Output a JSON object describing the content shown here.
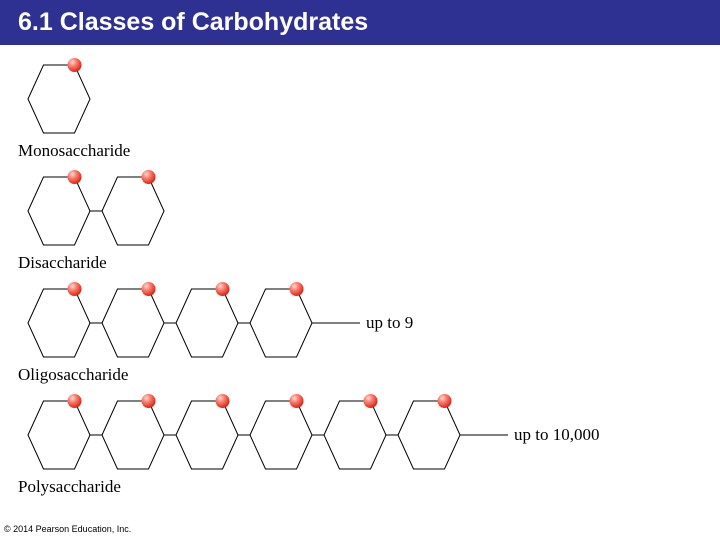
{
  "header": {
    "title": "6.1 Classes of Carbohydrates",
    "bg_color": "#2e3192",
    "text_color": "#ffffff",
    "fontsize": 25
  },
  "hexagon": {
    "width": 62,
    "height": 68,
    "stroke": "#000000",
    "stroke_width": 1,
    "fill": "none"
  },
  "ball": {
    "r": 7,
    "fill_light": "#ffcccc",
    "fill_core": "#e63b2e",
    "grad_id": "ballGrad"
  },
  "rows": [
    {
      "name": "Monosaccharide",
      "count": 1,
      "extra_text": null
    },
    {
      "name": "Disaccharide",
      "count": 2,
      "extra_text": null
    },
    {
      "name": "Oligosaccharide",
      "count": 4,
      "extra_text": "up to 9"
    },
    {
      "name": "Polysaccharide",
      "count": 6,
      "extra_text": "up to 10,000"
    }
  ],
  "link_len": 12,
  "tail_len": 48,
  "label_fontsize": 17,
  "extra_fontsize": 17,
  "copyright": "© 2014 Pearson Education, Inc.",
  "copyright_fontsize": 9
}
